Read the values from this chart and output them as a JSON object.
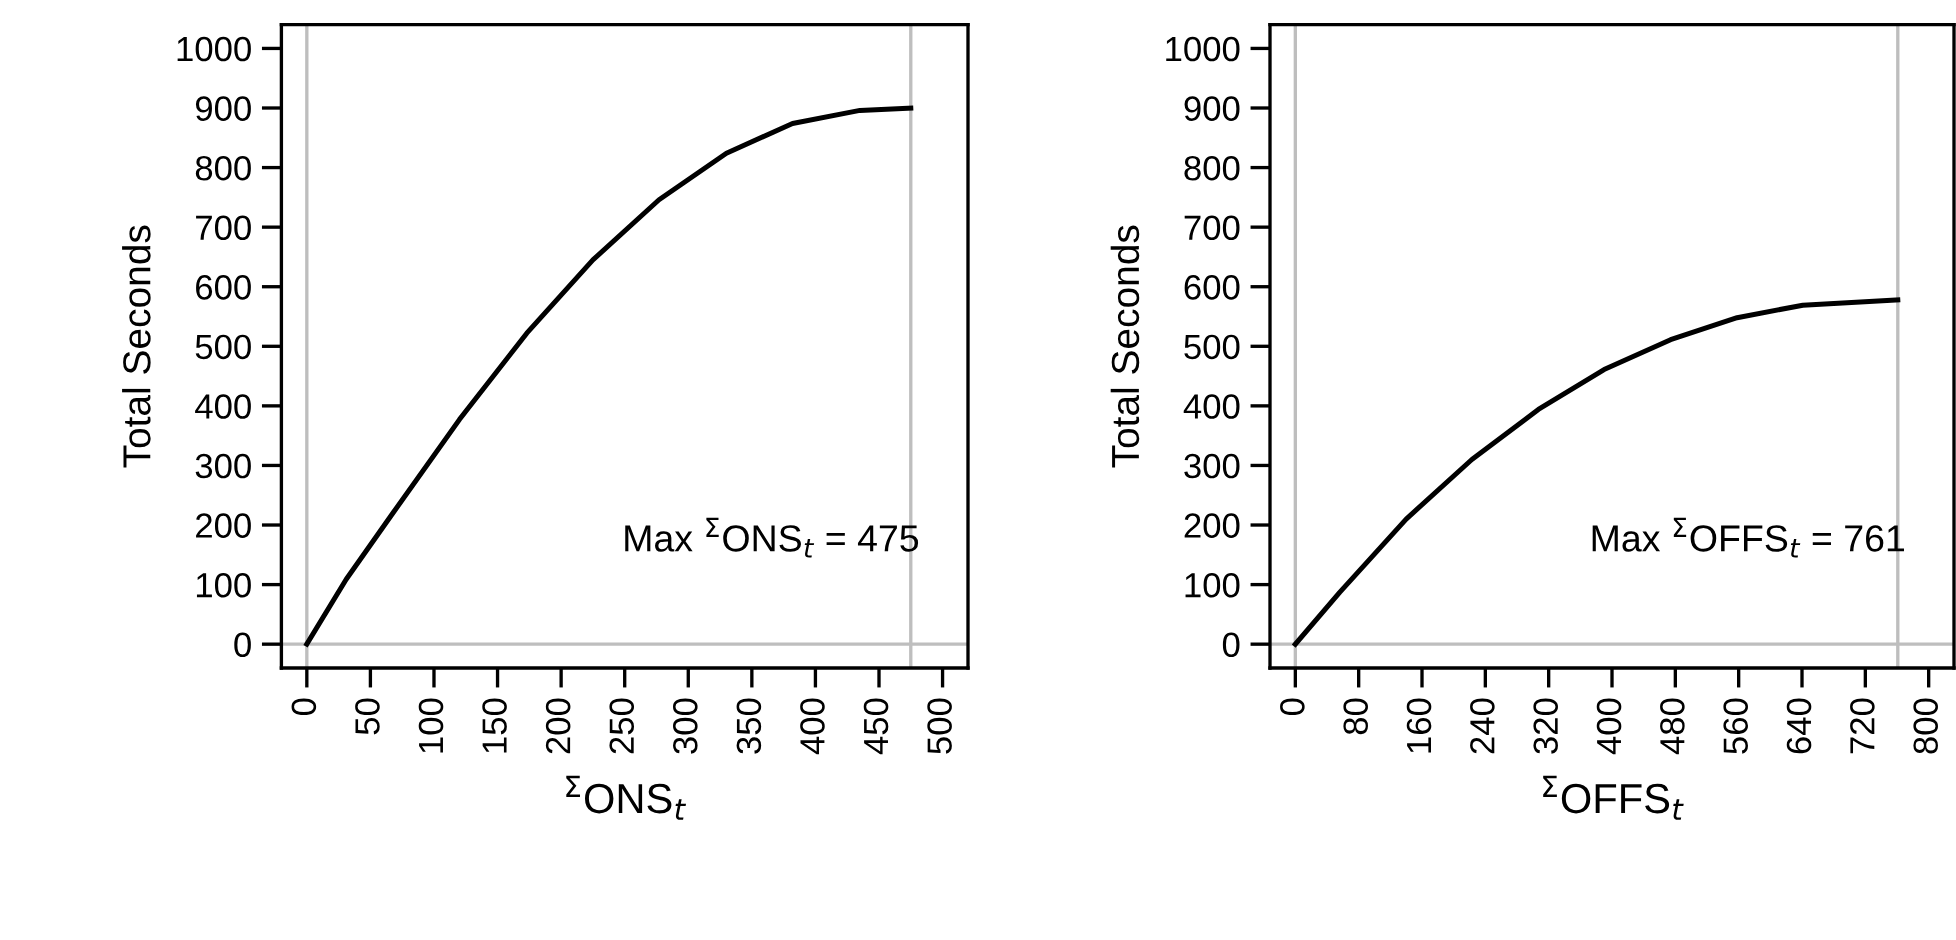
{
  "chart_data": [
    {
      "type": "line",
      "xlabel": "$^{Σ}$ONS$_{t}$",
      "ylabel": "Total Seconds",
      "annotations": [
        "Max $^{Σ}$ONS$_{t}$ = 475"
      ],
      "xlim": [
        -20,
        520
      ],
      "xticks": [
        0,
        50,
        100,
        150,
        200,
        250,
        300,
        350,
        400,
        450,
        500
      ],
      "ylim": [
        -40,
        1040
      ],
      "yticks": [
        0,
        100,
        200,
        300,
        400,
        500,
        600,
        700,
        800,
        900,
        1000
      ],
      "grid": false,
      "ref_lines": [
        {
          "axis": "x",
          "value": 0,
          "color": "#bebebe"
        },
        {
          "axis": "x",
          "value": 475,
          "color": "#bebebe"
        },
        {
          "axis": "y",
          "value": 0,
          "color": "#bebebe"
        }
      ],
      "series": [
        {
          "color": "#000000",
          "x": [
            0,
            31,
            68,
            120,
            173,
            225,
            277,
            330,
            382,
            435,
            475
          ],
          "values": [
            0,
            109,
            221,
            377,
            522,
            645,
            746,
            824,
            874,
            896,
            900
          ]
        }
      ]
    },
    {
      "type": "line",
      "xlabel": "$^{Σ}$OFFS$_{t}$",
      "ylabel": "Total Seconds",
      "annotations": [
        "Max $^{Σ}$OFFS$_{t}$ = 761"
      ],
      "xlim": [
        -32,
        832
      ],
      "xticks": [
        0,
        80,
        160,
        240,
        320,
        400,
        480,
        560,
        640,
        720,
        800
      ],
      "ylim": [
        -40,
        1040
      ],
      "yticks": [
        0,
        100,
        200,
        300,
        400,
        500,
        600,
        700,
        800,
        900,
        1000
      ],
      "grid": false,
      "ref_lines": [
        {
          "axis": "x",
          "value": 0,
          "color": "#bebebe"
        },
        {
          "axis": "x",
          "value": 761,
          "color": "#bebebe"
        },
        {
          "axis": "y",
          "value": 0,
          "color": "#bebebe"
        }
      ],
      "series": [
        {
          "color": "#000000",
          "x": [
            0,
            56,
            140,
            223,
            307,
            390,
            474,
            558,
            641,
            761
          ],
          "values": [
            0,
            87,
            210,
            310,
            394,
            461,
            511,
            548,
            569,
            578
          ]
        }
      ]
    }
  ]
}
